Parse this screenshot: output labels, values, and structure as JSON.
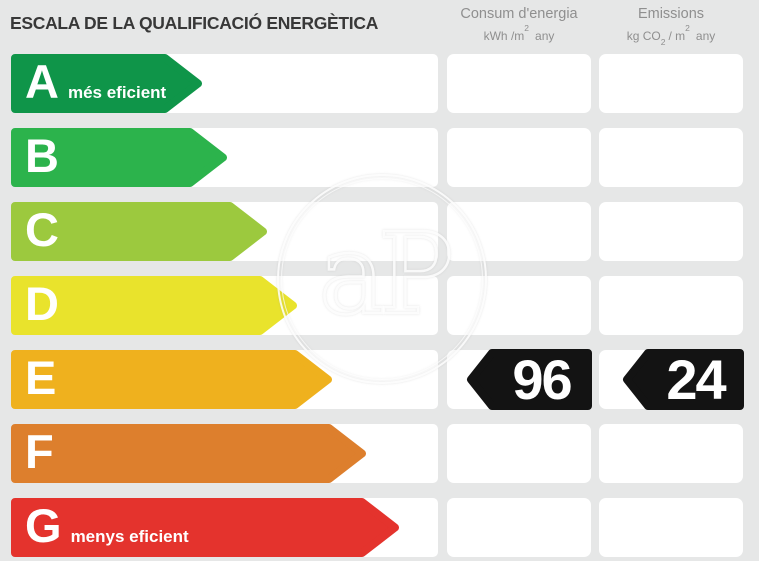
{
  "title": "ESCALA DE LA QUALIFICACIÓ ENERGÈTICA",
  "header": {
    "consum": {
      "title": "Consum d'energia",
      "unit": {
        "p1": "kWh /m",
        "sup": "2",
        "p2": "any"
      }
    },
    "emissions": {
      "title": "Emissions",
      "unit": {
        "p1": "kg CO",
        "sub": "2",
        "p2": "/ m",
        "sup": "2",
        "p3": "any"
      }
    }
  },
  "ratings": [
    {
      "letter": "A",
      "label": "més eficient",
      "color": "#0f9549",
      "arrow_width": 192
    },
    {
      "letter": "B",
      "label": "",
      "color": "#2cb34c",
      "arrow_width": 217
    },
    {
      "letter": "C",
      "label": "",
      "color": "#9cc93e",
      "arrow_width": 257
    },
    {
      "letter": "D",
      "label": "",
      "color": "#e9e32c",
      "arrow_width": 287
    },
    {
      "letter": "E",
      "label": "",
      "color": "#efb11e",
      "arrow_width": 322
    },
    {
      "letter": "F",
      "label": "",
      "color": "#dd7f2d",
      "arrow_width": 356
    },
    {
      "letter": "G",
      "label": "menys eficient",
      "color": "#e4332d",
      "arrow_width": 389
    }
  ],
  "values": {
    "consum": {
      "value": "96",
      "arrow_width": 127
    },
    "emissions": {
      "value": "24",
      "arrow_width": 123
    }
  },
  "value_arrow_color": "#131313",
  "watermark": {
    "text": "aP"
  },
  "chart_data": {
    "type": "bar",
    "title": "ESCALA DE LA QUALIFICACIÓ ENERGÈTICA",
    "categories": [
      "A",
      "B",
      "C",
      "D",
      "E",
      "F",
      "G"
    ],
    "bar_colors": [
      "#0f9549",
      "#2cb34c",
      "#9cc93e",
      "#e9e32c",
      "#efb11e",
      "#dd7f2d",
      "#e4332d"
    ],
    "bar_relative_lengths": [
      192,
      217,
      257,
      287,
      322,
      356,
      389
    ],
    "annotations": {
      "A": "més eficient",
      "G": "menys eficient"
    },
    "selected_rating": "E",
    "series": [
      {
        "name": "Consum d'energia",
        "unit": "kWh/m² any",
        "rating": "E",
        "value": 96
      },
      {
        "name": "Emissions",
        "unit": "kg CO₂/m² any",
        "rating": "E",
        "value": 24
      }
    ],
    "legend_position": "top",
    "grid": false
  }
}
